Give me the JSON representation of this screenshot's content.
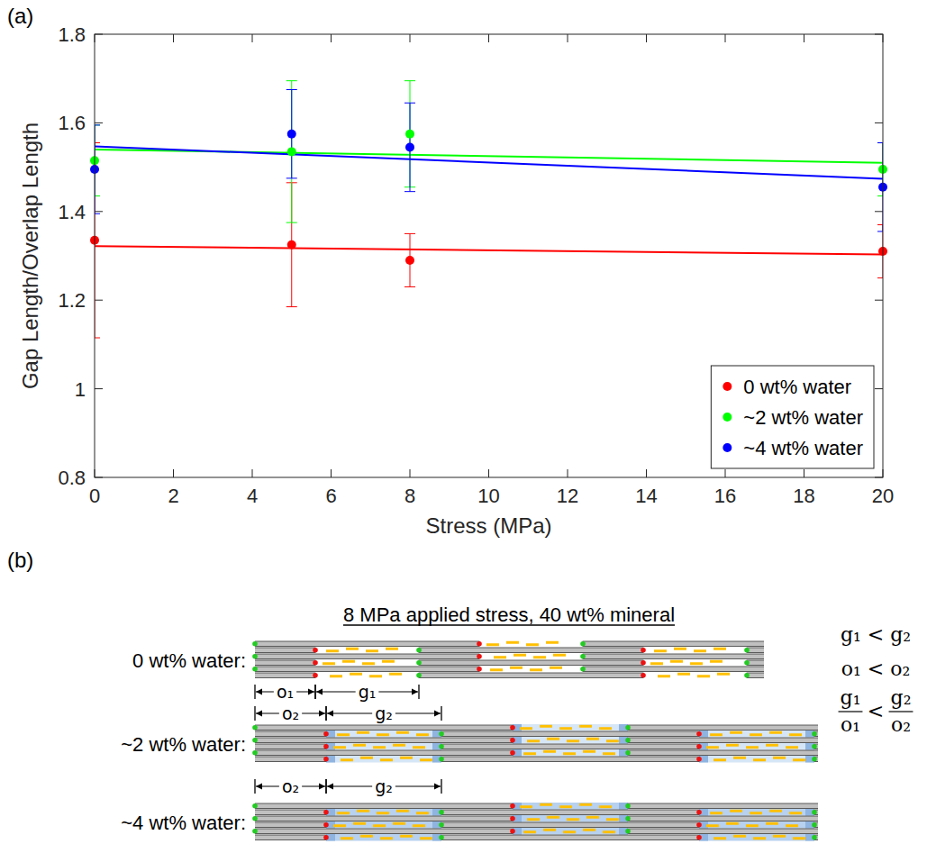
{
  "chart_data": {
    "type": "scatter",
    "panel_label": "(a)",
    "x_label": "Stress (MPa)",
    "y_label": "Gap Length/Overlap Length",
    "x": [
      0,
      5,
      8,
      20
    ],
    "xlim": [
      0,
      20
    ],
    "xticks": [
      0,
      2,
      4,
      6,
      8,
      10,
      12,
      14,
      16,
      18,
      20
    ],
    "ylim": [
      0.8,
      1.8
    ],
    "yticks": [
      0.8,
      1,
      1.2,
      1.4,
      1.6,
      1.8
    ],
    "grid": false,
    "legend": "lower right",
    "marker": "circle",
    "fit_x": [
      0,
      20
    ],
    "series": [
      {
        "name": "0 wt% water",
        "color": "#ff0000",
        "values": [
          1.335,
          1.325,
          1.29,
          1.31
        ],
        "errors": [
          0.22,
          0.14,
          0.06,
          0.06
        ],
        "fit": [
          1.322,
          1.303
        ]
      },
      {
        "name": "~2 wt% water",
        "color": "#00ff00",
        "values": [
          1.515,
          1.535,
          1.575,
          1.495
        ],
        "errors": [
          0.08,
          0.16,
          0.12,
          0.06
        ],
        "fit": [
          1.54,
          1.51
        ]
      },
      {
        "name": "~4 wt% water",
        "color": "#0000ff",
        "values": [
          1.495,
          1.575,
          1.545,
          1.455
        ],
        "errors": [
          0.1,
          0.1,
          0.1,
          0.1
        ],
        "fit": [
          1.547,
          1.474
        ]
      }
    ]
  },
  "diagram": {
    "panel_label": "(b)",
    "title": "8 MPa applied stress, 40 wt% mineral",
    "rows": [
      {
        "label": "0 wt% water:",
        "overlap": "o₁",
        "gap": "g₁"
      },
      {
        "label": "~2 wt% water:",
        "overlap": "o₂",
        "gap": "g₂"
      },
      {
        "label": "~4 wt% water:",
        "overlap": "o₂",
        "gap": "g₂"
      }
    ],
    "relations": [
      "g₁ < g₂",
      "o₁ < o₂"
    ],
    "ratio_relation": {
      "left": {
        "numerator": "g₁",
        "denominator": "o₁"
      },
      "operator": "<",
      "right": {
        "numerator": "g₂",
        "denominator": "o₂"
      }
    }
  }
}
